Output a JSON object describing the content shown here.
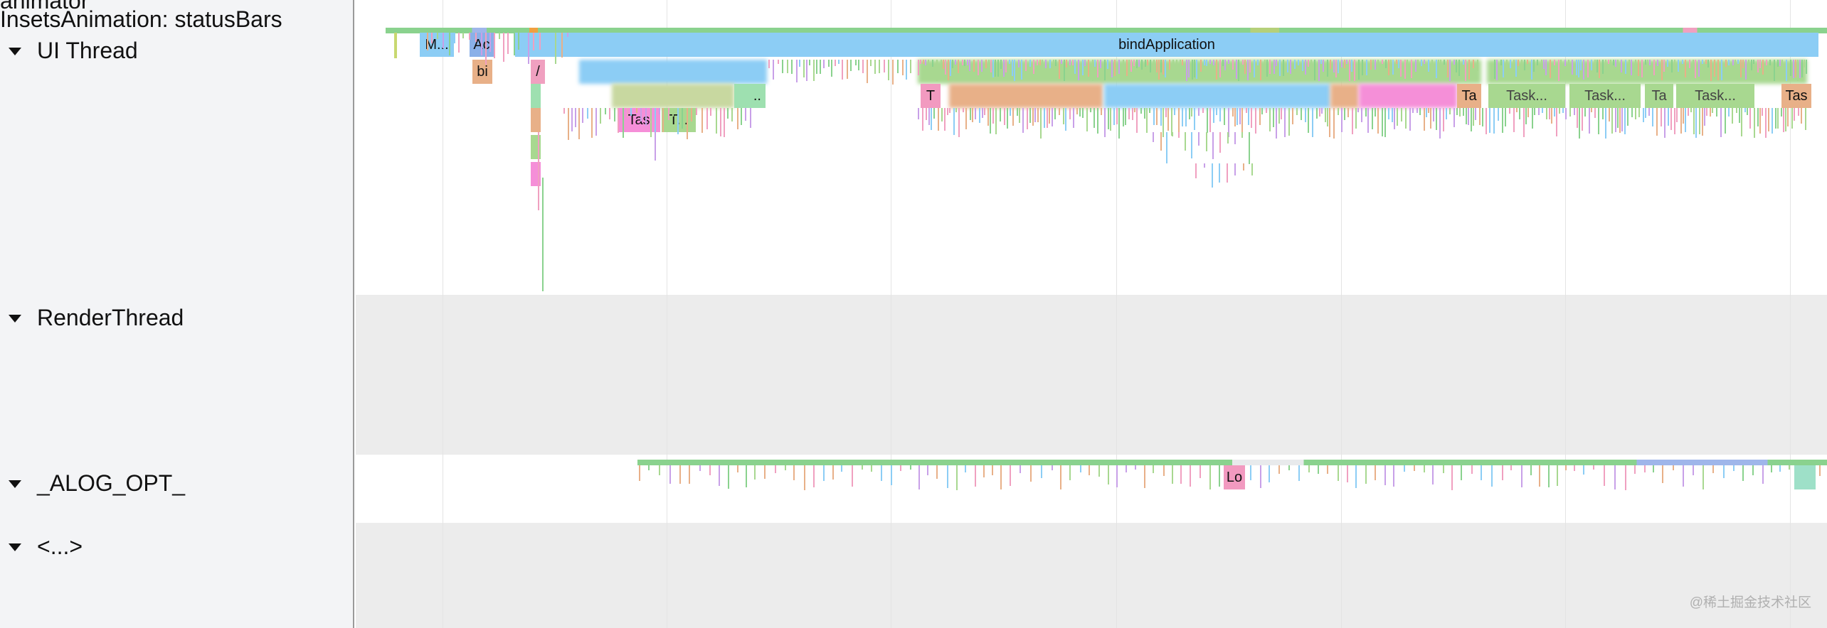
{
  "left_panel": {
    "cut_label": "animator",
    "process_label": "InsetsAnimation: statusBars",
    "tracks": [
      {
        "name": "UI Thread"
      },
      {
        "name": "RenderThread"
      },
      {
        "name": "_ALOG_OPT_"
      },
      {
        "name": "<...>"
      }
    ]
  },
  "slices": {
    "ui_top": [
      {
        "label": "M...",
        "color": "#8ccdf5"
      },
      {
        "label": "Ac",
        "color": "#8ab0e8"
      },
      {
        "label": "bindApplication",
        "color": "#8ccdf5"
      }
    ],
    "ui_depth1": [
      {
        "label": "bi",
        "color": "#e8b088"
      },
      {
        "label": "/",
        "color": "#f0a0c0"
      }
    ],
    "ui_depth2": [
      {
        "label": "..",
        "color": "#9ee0b0"
      },
      {
        "label": "T",
        "color": "#f29ac0"
      },
      {
        "label": "Ta",
        "color": "#e8b088"
      },
      {
        "label": "Task...",
        "color": "#a8d890"
      },
      {
        "label": "Task...",
        "color": "#a8d890"
      },
      {
        "label": "Ta",
        "color": "#a8d890"
      },
      {
        "label": "Task...",
        "color": "#a8d890"
      },
      {
        "label": "Tas",
        "color": "#e8b088"
      }
    ],
    "ui_depth3": [
      {
        "label": "Tas",
        "color": "#f58fd8"
      },
      {
        "label": "T...",
        "color": "#a8d890"
      }
    ],
    "alog": [
      {
        "label": "Lo",
        "color": "#f29ac0"
      }
    ]
  },
  "watermark": "@稀土掘金技术社区"
}
